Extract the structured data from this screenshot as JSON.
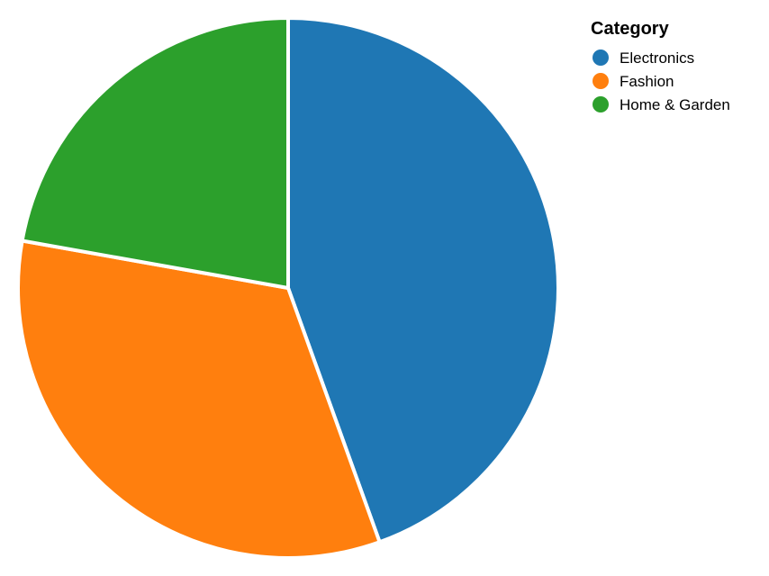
{
  "chart_data": {
    "type": "pie",
    "categories": [
      "Electronics",
      "Fashion",
      "Home & Garden"
    ],
    "values": [
      44.5,
      33.3,
      22.2
    ],
    "colors": [
      "#1f77b4",
      "#ff7f0e",
      "#2ca02c"
    ],
    "legend": {
      "title": "Category",
      "position": "top-right"
    },
    "start_angle": "12 o'clock",
    "direction": "clockwise"
  }
}
